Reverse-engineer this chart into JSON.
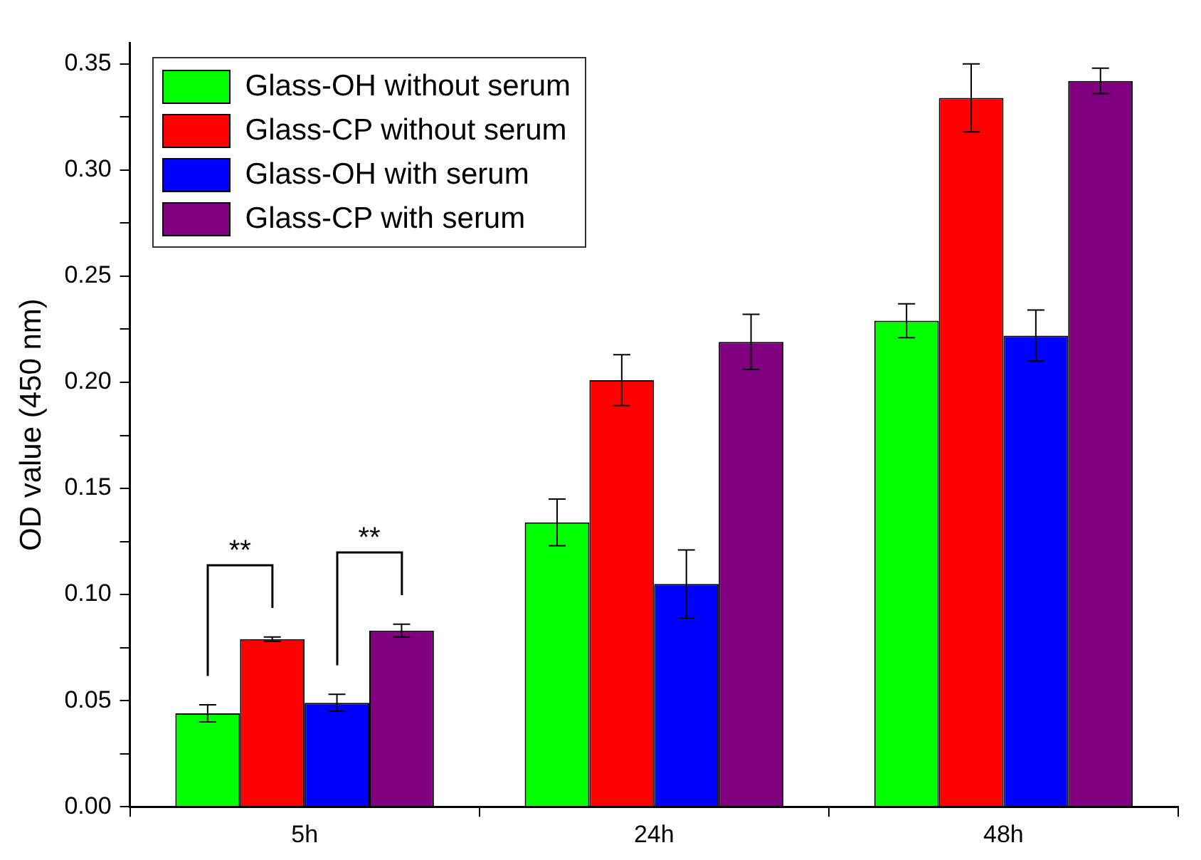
{
  "chart_data": {
    "type": "bar",
    "ylabel": "OD value (450 nm)",
    "categories": [
      "5h",
      "24h",
      "48h"
    ],
    "series": [
      {
        "name": "Glass-OH without serum",
        "color": "#00ff00",
        "values": [
          0.044,
          0.134,
          0.229
        ],
        "errors": [
          0.004,
          0.011,
          0.008
        ]
      },
      {
        "name": "Glass-CP without serum",
        "color": "#ff0000",
        "values": [
          0.079,
          0.201,
          0.334
        ],
        "errors": [
          0.001,
          0.012,
          0.016
        ]
      },
      {
        "name": "Glass-OH with serum",
        "color": "#0000ff",
        "values": [
          0.049,
          0.105,
          0.222
        ],
        "errors": [
          0.004,
          0.016,
          0.012
        ]
      },
      {
        "name": "Glass-CP with serum",
        "color": "#800080",
        "values": [
          0.083,
          0.219,
          0.342
        ],
        "errors": [
          0.003,
          0.013,
          0.006
        ]
      }
    ],
    "ylim": [
      0,
      0.36
    ],
    "yticks": [
      {
        "value": 0,
        "label": "0.00"
      },
      {
        "value": 0.025,
        "label": null
      },
      {
        "value": 0.05,
        "label": "0.05"
      },
      {
        "value": 0.075,
        "label": null
      },
      {
        "value": 0.1,
        "label": "0.10"
      },
      {
        "value": 0.125,
        "label": null
      },
      {
        "value": 0.15,
        "label": "0.15"
      },
      {
        "value": 0.175,
        "label": null
      },
      {
        "value": 0.2,
        "label": "0.20"
      },
      {
        "value": 0.225,
        "label": null
      },
      {
        "value": 0.25,
        "label": "0.25"
      },
      {
        "value": 0.275,
        "label": null
      },
      {
        "value": 0.3,
        "label": "0.30"
      },
      {
        "value": 0.325,
        "label": null
      },
      {
        "value": 0.35,
        "label": "0.35"
      }
    ],
    "annotations": [
      "**",
      "**"
    ],
    "grid": false,
    "legend": "top left"
  }
}
